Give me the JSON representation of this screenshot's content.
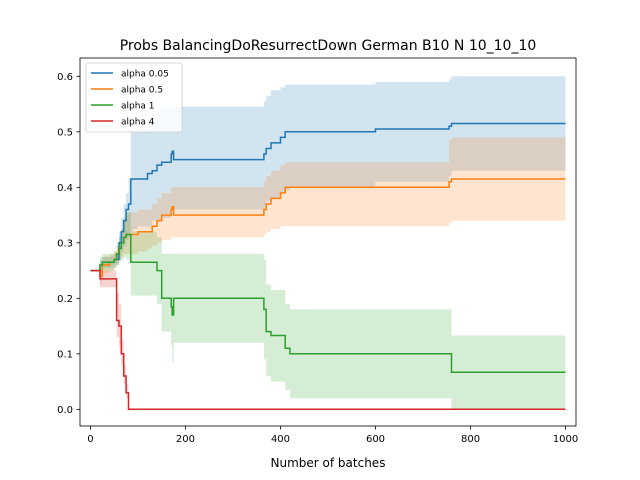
{
  "chart_data": {
    "type": "line",
    "title": "Probs BalancingDoResurrectDown German B10 N 10_10_10",
    "xlabel": "Number of batches",
    "ylabel": "",
    "xlim": [
      -22,
      1022
    ],
    "ylim": [
      -0.03,
      0.633
    ],
    "xticks": [
      0,
      200,
      400,
      600,
      800,
      1000
    ],
    "yticks": [
      0.0,
      0.1,
      0.2,
      0.3,
      0.4,
      0.5,
      0.6
    ],
    "legend_position": "top-left",
    "grid": false,
    "series": [
      {
        "name": "alpha 0.05",
        "color": "#1f77b4",
        "x": [
          0,
          15,
          20,
          25,
          30,
          40,
          50,
          55,
          60,
          65,
          70,
          75,
          80,
          85,
          90,
          100,
          120,
          130,
          140,
          150,
          165,
          170,
          172,
          175,
          180,
          200,
          250,
          300,
          350,
          365,
          370,
          380,
          400,
          410,
          420,
          500,
          600,
          700,
          755,
          760,
          800,
          900,
          1000
        ],
        "y": [
          0.25,
          0.25,
          0.26,
          0.265,
          0.265,
          0.265,
          0.27,
          0.27,
          0.3,
          0.32,
          0.34,
          0.36,
          0.37,
          0.415,
          0.415,
          0.415,
          0.425,
          0.43,
          0.44,
          0.445,
          0.445,
          0.46,
          0.465,
          0.45,
          0.45,
          0.45,
          0.45,
          0.45,
          0.45,
          0.46,
          0.47,
          0.48,
          0.49,
          0.5,
          0.5,
          0.5,
          0.505,
          0.505,
          0.51,
          0.515,
          0.515,
          0.515,
          0.515
        ],
        "lower": [
          0.25,
          0.25,
          0.25,
          0.255,
          0.255,
          0.255,
          0.26,
          0.26,
          0.27,
          0.285,
          0.295,
          0.305,
          0.31,
          0.32,
          0.325,
          0.33,
          0.33,
          0.34,
          0.34,
          0.345,
          0.345,
          0.355,
          0.36,
          0.36,
          0.36,
          0.36,
          0.36,
          0.36,
          0.36,
          0.365,
          0.375,
          0.38,
          0.39,
          0.395,
          0.4,
          0.4,
          0.41,
          0.41,
          0.42,
          0.43,
          0.43,
          0.43,
          0.43
        ],
        "upper": [
          0.25,
          0.25,
          0.27,
          0.275,
          0.275,
          0.275,
          0.28,
          0.28,
          0.32,
          0.345,
          0.37,
          0.39,
          0.415,
          0.5,
          0.5,
          0.505,
          0.515,
          0.52,
          0.54,
          0.545,
          0.545,
          0.545,
          0.545,
          0.545,
          0.545,
          0.545,
          0.545,
          0.545,
          0.545,
          0.555,
          0.565,
          0.575,
          0.58,
          0.585,
          0.585,
          0.585,
          0.59,
          0.59,
          0.595,
          0.6,
          0.6,
          0.6,
          0.6
        ]
      },
      {
        "name": "alpha 0.5",
        "color": "#ff7f0e",
        "x": [
          0,
          15,
          20,
          25,
          30,
          40,
          50,
          55,
          60,
          65,
          70,
          75,
          80,
          90,
          100,
          120,
          130,
          140,
          150,
          165,
          170,
          172,
          175,
          200,
          250,
          300,
          350,
          365,
          370,
          380,
          400,
          410,
          420,
          500,
          600,
          700,
          755,
          760,
          800,
          900,
          1000
        ],
        "y": [
          0.25,
          0.25,
          0.24,
          0.26,
          0.26,
          0.265,
          0.27,
          0.28,
          0.29,
          0.3,
          0.31,
          0.315,
          0.315,
          0.315,
          0.32,
          0.32,
          0.33,
          0.34,
          0.35,
          0.35,
          0.36,
          0.365,
          0.35,
          0.35,
          0.35,
          0.35,
          0.35,
          0.36,
          0.37,
          0.38,
          0.39,
          0.4,
          0.4,
          0.4,
          0.4,
          0.4,
          0.41,
          0.415,
          0.415,
          0.415,
          0.415
        ],
        "lower": [
          0.25,
          0.25,
          0.225,
          0.245,
          0.245,
          0.25,
          0.255,
          0.265,
          0.27,
          0.275,
          0.28,
          0.28,
          0.28,
          0.28,
          0.285,
          0.29,
          0.295,
          0.3,
          0.305,
          0.305,
          0.31,
          0.31,
          0.31,
          0.31,
          0.31,
          0.31,
          0.31,
          0.315,
          0.32,
          0.325,
          0.33,
          0.33,
          0.33,
          0.33,
          0.33,
          0.33,
          0.335,
          0.34,
          0.34,
          0.34,
          0.34
        ],
        "upper": [
          0.25,
          0.25,
          0.255,
          0.275,
          0.275,
          0.28,
          0.285,
          0.295,
          0.31,
          0.325,
          0.34,
          0.35,
          0.355,
          0.355,
          0.36,
          0.36,
          0.37,
          0.38,
          0.39,
          0.39,
          0.4,
          0.4,
          0.4,
          0.4,
          0.4,
          0.4,
          0.4,
          0.41,
          0.42,
          0.43,
          0.44,
          0.445,
          0.445,
          0.445,
          0.445,
          0.445,
          0.485,
          0.49,
          0.49,
          0.49,
          0.49
        ]
      },
      {
        "name": "alpha 1",
        "color": "#2ca02c",
        "x": [
          0,
          15,
          20,
          25,
          30,
          40,
          50,
          55,
          60,
          65,
          70,
          75,
          80,
          85,
          90,
          100,
          130,
          140,
          150,
          165,
          170,
          172,
          175,
          200,
          250,
          300,
          350,
          365,
          370,
          380,
          400,
          410,
          420,
          500,
          600,
          700,
          755,
          760,
          800,
          900,
          1000
        ],
        "y": [
          0.25,
          0.25,
          0.26,
          0.265,
          0.265,
          0.265,
          0.27,
          0.28,
          0.29,
          0.3,
          0.31,
          0.315,
          0.315,
          0.265,
          0.265,
          0.265,
          0.265,
          0.25,
          0.2,
          0.2,
          0.185,
          0.17,
          0.2,
          0.2,
          0.2,
          0.2,
          0.2,
          0.18,
          0.14,
          0.133,
          0.133,
          0.11,
          0.1,
          0.1,
          0.1,
          0.1,
          0.1,
          0.067,
          0.067,
          0.067,
          0.067
        ],
        "lower": [
          0.25,
          0.25,
          0.245,
          0.25,
          0.25,
          0.25,
          0.255,
          0.26,
          0.265,
          0.27,
          0.275,
          0.27,
          0.27,
          0.205,
          0.205,
          0.205,
          0.205,
          0.19,
          0.14,
          0.14,
          0.115,
          0.085,
          0.12,
          0.12,
          0.12,
          0.12,
          0.12,
          0.09,
          0.06,
          0.05,
          0.05,
          0.035,
          0.02,
          0.02,
          0.02,
          0.02,
          0.02,
          0.0,
          0.0,
          0.0,
          0.0
        ],
        "upper": [
          0.25,
          0.25,
          0.275,
          0.28,
          0.28,
          0.28,
          0.285,
          0.3,
          0.31,
          0.325,
          0.345,
          0.355,
          0.355,
          0.32,
          0.32,
          0.32,
          0.32,
          0.31,
          0.28,
          0.28,
          0.28,
          0.28,
          0.28,
          0.28,
          0.28,
          0.28,
          0.28,
          0.27,
          0.225,
          0.215,
          0.215,
          0.19,
          0.18,
          0.18,
          0.18,
          0.18,
          0.18,
          0.133,
          0.133,
          0.133,
          0.133
        ]
      },
      {
        "name": "alpha 4",
        "color": "#d62728",
        "x": [
          0,
          15,
          20,
          25,
          30,
          40,
          45,
          50,
          55,
          60,
          65,
          70,
          75,
          80,
          100,
          200,
          300,
          400,
          500,
          600,
          700,
          800,
          900,
          1000
        ],
        "y": [
          0.25,
          0.25,
          0.235,
          0.235,
          0.235,
          0.235,
          0.235,
          0.235,
          0.16,
          0.15,
          0.1,
          0.06,
          0.03,
          0.0,
          0.0,
          0.0,
          0.0,
          0.0,
          0.0,
          0.0,
          0.0,
          0.0,
          0.0,
          0.0
        ],
        "lower": [
          0.25,
          0.25,
          0.22,
          0.22,
          0.22,
          0.22,
          0.22,
          0.22,
          0.13,
          0.115,
          0.08,
          0.045,
          0.02,
          0.0,
          0.0,
          0.0,
          0.0,
          0.0,
          0.0,
          0.0,
          0.0,
          0.0,
          0.0,
          0.0
        ],
        "upper": [
          0.25,
          0.25,
          0.25,
          0.25,
          0.25,
          0.25,
          0.25,
          0.25,
          0.21,
          0.19,
          0.125,
          0.08,
          0.045,
          0.0,
          0.0,
          0.0,
          0.0,
          0.0,
          0.0,
          0.0,
          0.0,
          0.0,
          0.0,
          0.0
        ]
      }
    ]
  }
}
